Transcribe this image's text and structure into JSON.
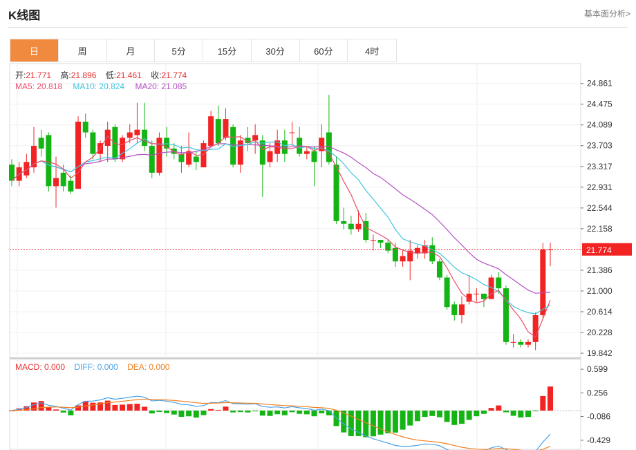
{
  "header": {
    "title": "K线图",
    "link": "基本面分析>"
  },
  "tabs": [
    {
      "label": "日",
      "active": true
    },
    {
      "label": "周"
    },
    {
      "label": "月"
    },
    {
      "label": "5分"
    },
    {
      "label": "15分"
    },
    {
      "label": "30分"
    },
    {
      "label": "60分"
    },
    {
      "label": "4时"
    }
  ],
  "ohlc": {
    "open_label": "开:",
    "open": "21.771",
    "high_label": "高:",
    "high": "21.896",
    "low_label": "低:",
    "low": "21.461",
    "close_label": "收:",
    "close": "21.774"
  },
  "ma": {
    "ma5": "MA5: 20.818",
    "ma10": "MA10: 20.824",
    "ma20": "MA20: 21.085"
  },
  "macd": {
    "macd": "MACD: 0.000",
    "diff": "DIFF: 0.000",
    "dea": "DEA: 0.000"
  },
  "colors": {
    "up": "#f22323",
    "down": "#14b414",
    "ma5": "#e94e6c",
    "ma10": "#40c4e0",
    "ma20": "#b44fc4",
    "diff": "#4aa3ea",
    "dea": "#f08020",
    "accent": "#f08a3e"
  },
  "chart_data": {
    "type": "candlestick",
    "price_ticks": [
      "24.861",
      "24.475",
      "24.089",
      "23.703",
      "23.317",
      "22.931",
      "22.544",
      "22.158",
      "21.386",
      "21.000",
      "20.614",
      "20.228",
      "19.842"
    ],
    "last_price": "21.774",
    "macd_ticks": [
      "0.599",
      "0.256",
      "-0.086",
      "-0.429"
    ],
    "ylim": [
      19.842,
      25.05
    ],
    "candles": [
      [
        23.35,
        23.05,
        23.45,
        22.95
      ],
      [
        23.05,
        23.3,
        23.4,
        22.95
      ],
      [
        23.15,
        23.4,
        23.55,
        23.1
      ],
      [
        23.3,
        23.7,
        24.05,
        23.2
      ],
      [
        23.85,
        23.65,
        24.0,
        23.5
      ],
      [
        23.9,
        22.95,
        23.95,
        22.85
      ],
      [
        22.95,
        23.1,
        23.5,
        22.55
      ],
      [
        23.2,
        22.95,
        23.35,
        22.85
      ],
      [
        23.05,
        22.85,
        23.15,
        22.8
      ],
      [
        22.9,
        24.15,
        24.25,
        22.9
      ],
      [
        24.15,
        23.95,
        24.3,
        23.85
      ],
      [
        23.95,
        23.55,
        24.0,
        23.45
      ],
      [
        23.55,
        23.75,
        23.8,
        23.4
      ],
      [
        23.7,
        24.0,
        24.15,
        23.4
      ],
      [
        24.05,
        23.45,
        24.1,
        23.4
      ],
      [
        23.45,
        23.85,
        23.9,
        23.4
      ],
      [
        23.85,
        23.95,
        24.1,
        23.75
      ],
      [
        23.9,
        24.0,
        24.5,
        23.75
      ],
      [
        24.0,
        23.7,
        24.5,
        23.6
      ],
      [
        23.7,
        23.2,
        23.8,
        23.1
      ],
      [
        23.2,
        23.85,
        23.95,
        23.15
      ],
      [
        23.85,
        23.65,
        24.05,
        23.5
      ],
      [
        23.65,
        23.55,
        23.75,
        23.45
      ],
      [
        23.55,
        23.4,
        23.7,
        23.2
      ],
      [
        23.35,
        23.6,
        23.95,
        23.3
      ],
      [
        23.5,
        23.4,
        23.6,
        23.25
      ],
      [
        23.3,
        23.75,
        23.8,
        23.3
      ],
      [
        23.7,
        24.25,
        24.35,
        23.7
      ],
      [
        24.2,
        23.75,
        24.45,
        23.7
      ],
      [
        23.85,
        24.2,
        24.4,
        23.8
      ],
      [
        24.05,
        23.35,
        24.1,
        23.3
      ],
      [
        23.35,
        23.8,
        23.9,
        23.2
      ],
      [
        23.85,
        23.75,
        24.05,
        23.6
      ],
      [
        23.8,
        23.9,
        24.1,
        23.55
      ],
      [
        23.8,
        23.35,
        23.9,
        22.75
      ],
      [
        23.4,
        23.6,
        23.75,
        23.3
      ],
      [
        23.55,
        23.8,
        24.0,
        23.4
      ],
      [
        23.8,
        23.55,
        24.0,
        23.4
      ],
      [
        23.95,
        23.95,
        24.15,
        23.7
      ],
      [
        23.85,
        23.55,
        24.05,
        23.5
      ],
      [
        23.55,
        23.6,
        23.7,
        23.45
      ],
      [
        23.6,
        23.4,
        23.7,
        22.95
      ],
      [
        23.6,
        23.85,
        24.1,
        23.3
      ],
      [
        23.95,
        23.4,
        24.65,
        23.35
      ],
      [
        23.35,
        22.3,
        23.5,
        22.25
      ],
      [
        22.3,
        22.25,
        22.55,
        22.15
      ],
      [
        22.25,
        22.15,
        22.4,
        22.05
      ],
      [
        22.15,
        22.25,
        22.5,
        22.1
      ],
      [
        22.3,
        21.95,
        22.45,
        21.9
      ],
      [
        21.95,
        21.95,
        22.05,
        21.75
      ],
      [
        21.95,
        21.9,
        21.95,
        21.8
      ],
      [
        21.9,
        21.75,
        21.95,
        21.7
      ],
      [
        21.8,
        21.55,
        21.9,
        21.45
      ],
      [
        21.55,
        21.65,
        21.75,
        21.45
      ],
      [
        21.55,
        21.75,
        21.95,
        21.2
      ],
      [
        21.7,
        21.8,
        21.85,
        21.6
      ],
      [
        21.7,
        21.85,
        21.95,
        21.6
      ],
      [
        21.85,
        21.55,
        22.0,
        21.5
      ],
      [
        21.55,
        21.25,
        21.6,
        21.2
      ],
      [
        21.25,
        20.7,
        21.3,
        20.65
      ],
      [
        20.75,
        20.55,
        20.8,
        20.45
      ],
      [
        20.55,
        20.75,
        20.9,
        20.4
      ],
      [
        20.8,
        20.95,
        21.3,
        20.75
      ],
      [
        20.95,
        20.95,
        21.05,
        20.8
      ],
      [
        20.95,
        20.85,
        20.95,
        20.7
      ],
      [
        20.85,
        21.25,
        21.3,
        20.85
      ],
      [
        21.25,
        21.05,
        21.35,
        20.95
      ],
      [
        21.05,
        20.05,
        21.1,
        20.0
      ],
      [
        20.05,
        20.05,
        20.2,
        19.95
      ],
      [
        20.05,
        20.0,
        20.1,
        19.95
      ],
      [
        20.0,
        20.05,
        20.1,
        19.95
      ],
      [
        20.05,
        20.55,
        20.6,
        19.9
      ],
      [
        20.55,
        21.771,
        21.896,
        20.5
      ],
      [
        21.771,
        21.774,
        21.896,
        21.461
      ]
    ]
  }
}
